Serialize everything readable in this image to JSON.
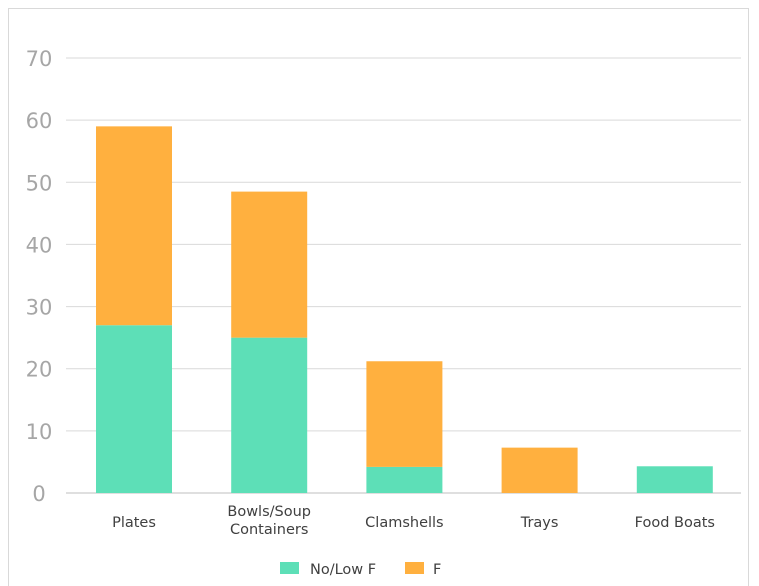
{
  "chart_data": {
    "type": "bar",
    "stacked": true,
    "categories": [
      "Plates",
      "Bowls/Soup Containers",
      "Clamshells",
      "Trays",
      "Food Boats"
    ],
    "category_lines": [
      [
        "Plates"
      ],
      [
        "Bowls/Soup",
        "Containers"
      ],
      [
        "Clamshells"
      ],
      [
        "Trays"
      ],
      [
        "Food Boats"
      ]
    ],
    "series": [
      {
        "name": "No/Low F",
        "color": "#5ddfb7",
        "values": [
          27,
          25,
          4.2,
          0,
          4.3
        ]
      },
      {
        "name": "F",
        "color": "#ffb03f",
        "values": [
          32,
          23.5,
          17,
          7.3,
          0
        ]
      }
    ],
    "ylim": [
      0,
      70
    ],
    "yticks": [
      0,
      10,
      20,
      30,
      40,
      50,
      60,
      70
    ],
    "grid": true,
    "legend_position": "bottom",
    "title": "",
    "xlabel": "",
    "ylabel": ""
  }
}
